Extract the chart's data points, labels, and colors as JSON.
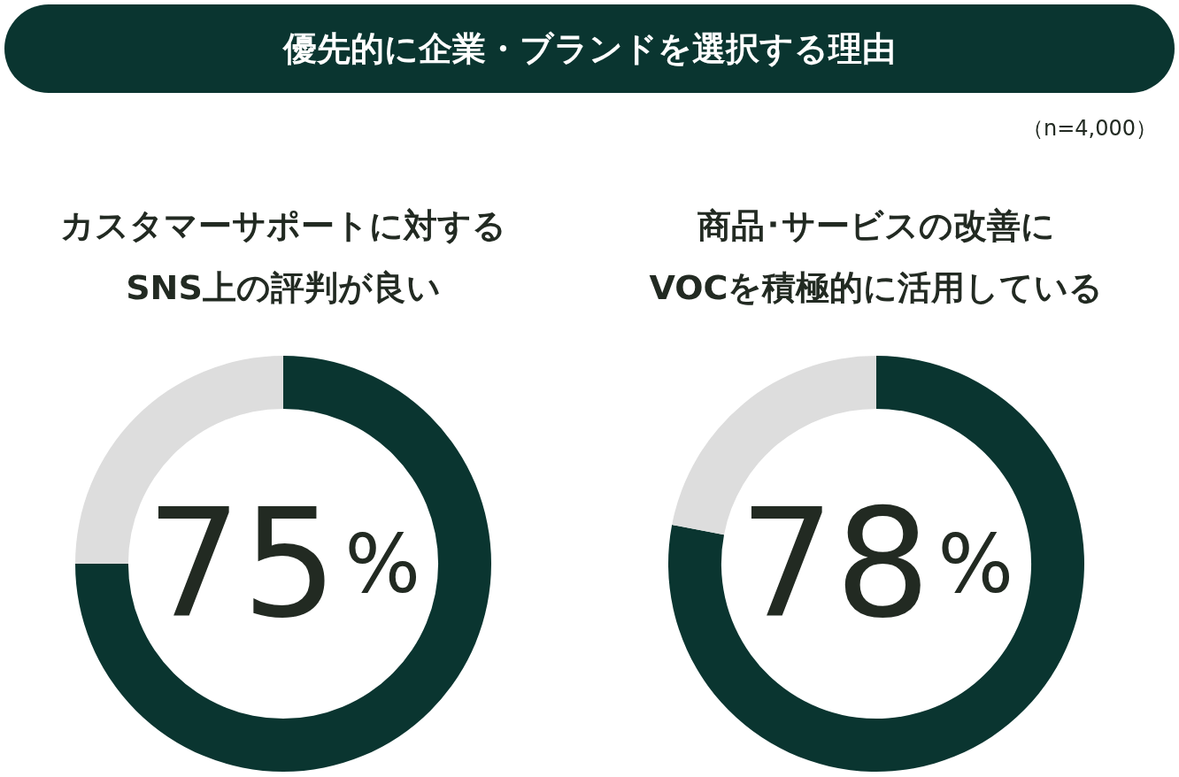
{
  "chart_data": [
    {
      "type": "other",
      "title": "優先的に企業・ブランドを選択する理由",
      "annotations": [
        "（n=4,000）"
      ]
    },
    {
      "type": "donut",
      "title": "カスタマーサポートに対する\nSNS上の評判が良い",
      "categories": [
        null,
        null
      ],
      "values": [
        75,
        25
      ],
      "colors": [
        "#0a3530",
        "#dddddd"
      ],
      "annotations": [
        "75%"
      ]
    },
    {
      "type": "donut",
      "title": "商品･サービスの改善に\nVOCを積極的に活用している",
      "categories": [
        null,
        null
      ],
      "values": [
        78,
        22
      ],
      "colors": [
        "#0a3530",
        "#dddddd"
      ],
      "annotations": [
        "78%"
      ]
    }
  ]
}
